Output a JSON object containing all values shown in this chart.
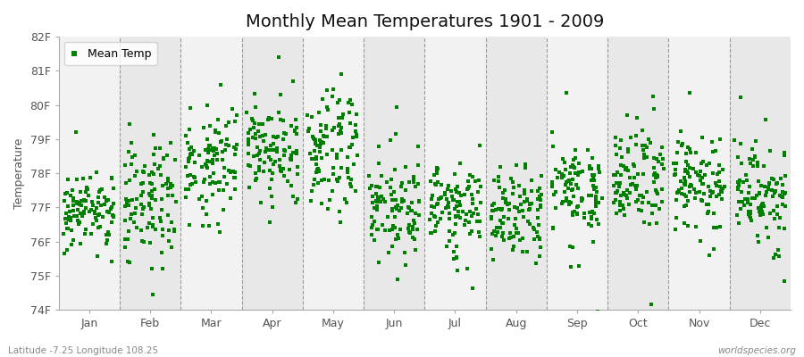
{
  "title": "Monthly Mean Temperatures 1901 - 2009",
  "ylabel": "Temperature",
  "xlabel_months": [
    "Jan",
    "Feb",
    "Mar",
    "Apr",
    "May",
    "Jun",
    "Jul",
    "Aug",
    "Sep",
    "Oct",
    "Nov",
    "Dec"
  ],
  "footer_left": "Latitude -7.25 Longitude 108.25",
  "footer_right": "worldspecies.org",
  "ylim": [
    74,
    82
  ],
  "yticks": [
    74,
    75,
    76,
    77,
    78,
    79,
    80,
    81,
    82
  ],
  "ytick_labels": [
    "74F",
    "75F",
    "76F",
    "77F",
    "78F",
    "79F",
    "80F",
    "81F",
    "82F"
  ],
  "marker_color": "#008000",
  "marker": "s",
  "marker_size": 2.5,
  "bg_light": "#f2f2f2",
  "bg_dark": "#e8e8e8",
  "legend_label": "Mean Temp",
  "title_fontsize": 14,
  "label_fontsize": 9,
  "tick_fontsize": 9,
  "years": 109,
  "monthly_means_F": [
    77.0,
    77.3,
    78.2,
    78.6,
    78.7,
    77.0,
    76.9,
    76.8,
    77.5,
    77.7,
    77.8,
    77.5
  ],
  "monthly_stds_F": [
    0.55,
    0.85,
    0.75,
    0.85,
    0.95,
    0.75,
    0.65,
    0.65,
    0.65,
    0.7,
    0.65,
    0.65
  ],
  "seed": 42,
  "vline_color": "#999999",
  "spine_color": "#aaaaaa"
}
